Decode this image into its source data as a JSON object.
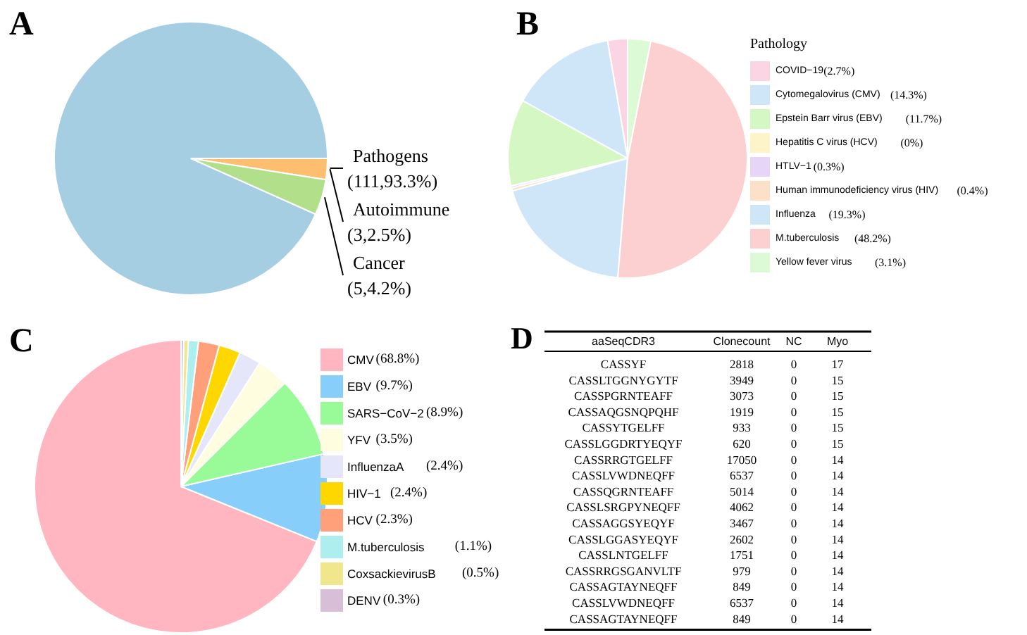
{
  "chart_data": [
    {
      "type": "pie",
      "title": "A",
      "legend": false,
      "categories": [
        "Pathogens",
        "Autoimmune",
        "Cancer"
      ],
      "values": [
        93.3,
        2.5,
        4.2
      ],
      "value_labels": [
        "(111,93.3%)",
        "(3,2.5%)",
        "(5,4.2%)"
      ],
      "colors": [
        "#a6cee3",
        "#fdbf6f",
        "#b2df8a"
      ]
    },
    {
      "type": "pie",
      "title": "B",
      "legend": "right",
      "legend_title": "Pathology",
      "categories": [
        "COVID−19",
        "Cytomegalovirus (CMV)",
        "Epstein Barr virus (EBV)",
        "Hepatitis C virus (HCV)",
        "HTLV−1",
        "Human immunodeficiency virus (HIV)",
        "Influenza",
        "M.tuberculosis",
        "Yellow fever virus"
      ],
      "values": [
        2.7,
        14.3,
        11.7,
        0,
        0.3,
        0.4,
        19.3,
        48.2,
        3.1
      ],
      "value_labels": [
        "(2.7%)",
        "(14.3%)",
        "(11.7%)",
        "(0%)",
        "(0.3%)",
        "(0.4%)",
        "(19.3%)",
        "(48.2%)",
        "(3.1%)"
      ],
      "colors": [
        "#fcd5e5",
        "#cfe6f8",
        "#d4f7c4",
        "#fdf5c9",
        "#e6d5f7",
        "#fde0c8",
        "#cfe6f8",
        "#fcd0d0",
        "#dcfad5"
      ]
    },
    {
      "type": "pie",
      "title": "C",
      "legend": "right",
      "categories": [
        "CMV",
        "EBV",
        "SARS−CoV−2",
        "YFV",
        "InfluenzaA",
        "HIV−1",
        "HCV",
        "M.tuberculosis",
        "CoxsackievirusB",
        "DENV"
      ],
      "values": [
        68.8,
        9.7,
        8.9,
        3.5,
        2.4,
        2.4,
        2.3,
        1.1,
        0.5,
        0.3
      ],
      "value_labels": [
        "(68.8%)",
        "(9.7%)",
        "(8.9%)",
        "(3.5%)",
        "(2.4%)",
        "(2.4%)",
        "(2.3%)",
        "(1.1%)",
        "(0.5%)",
        "(0.3%)"
      ],
      "colors": [
        "#ffb6c1",
        "#87cefa",
        "#98fb98",
        "#fffde0",
        "#e6e6fa",
        "#ffd700",
        "#ffa07a",
        "#afeeee",
        "#f0e68c",
        "#d8bfd8"
      ]
    },
    {
      "type": "heatmap",
      "title": "D",
      "ylabel": "aaSeqCDR3",
      "data_labels": true,
      "categories": [
        "Clonecount",
        "NC",
        "Myo"
      ],
      "y_categories": [
        "CASSYF",
        "CASSLTGGNYGYTF",
        "CASSPGRNTEAFF",
        "CASSAQGSNQPQHF",
        "CASSYTGELFF",
        "CASSLGGDRTYEQYF",
        "CASSRRGTGELFF",
        "CASSLVWDNEQFF",
        "CASSQGRNTEAFF",
        "CASSLSRGPYNEQFF",
        "CASSAGGSYEQYF",
        "CASSLGGASYEQYF",
        "CASSLNTGELFF",
        "CASSRRGSGANVLTF",
        "CASSAGTAYNEQFF",
        "CASSLVWDNEQFF",
        "CASSAGTAYNEQFF"
      ],
      "cells": [
        [
          2818,
          0,
          17
        ],
        [
          3949,
          0,
          15
        ],
        [
          3073,
          0,
          15
        ],
        [
          1919,
          0,
          15
        ],
        [
          933,
          0,
          15
        ],
        [
          620,
          0,
          15
        ],
        [
          17050,
          0,
          14
        ],
        [
          6537,
          0,
          14
        ],
        [
          5014,
          0,
          14
        ],
        [
          4062,
          0,
          14
        ],
        [
          3467,
          0,
          14
        ],
        [
          2602,
          0,
          14
        ],
        [
          1751,
          0,
          14
        ],
        [
          979,
          0,
          14
        ],
        [
          849,
          0,
          14
        ],
        [
          6537,
          0,
          14
        ],
        [
          849,
          0,
          14
        ]
      ]
    }
  ]
}
